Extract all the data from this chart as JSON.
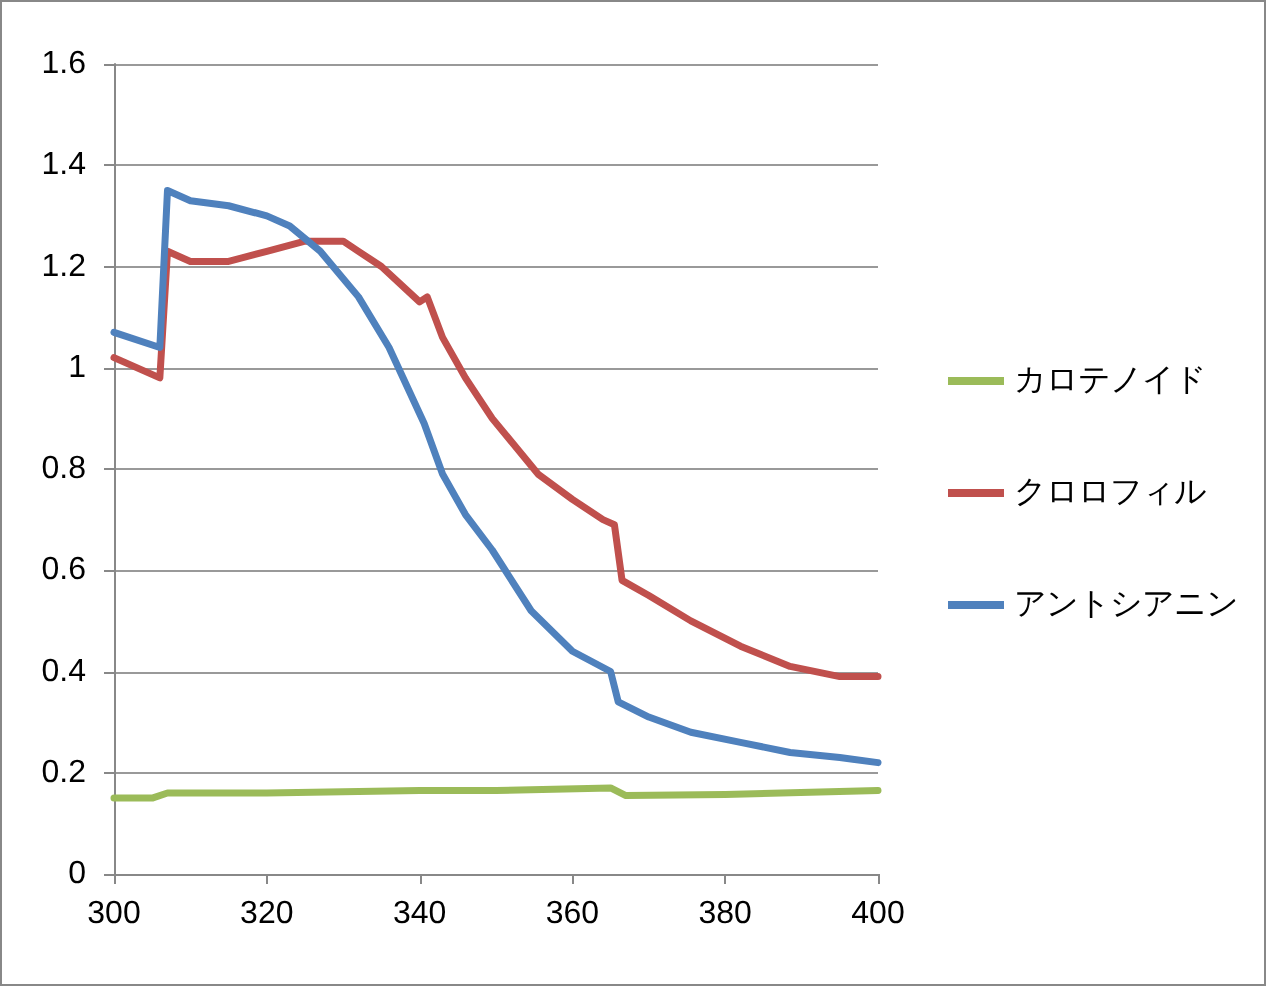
{
  "chart_data": {
    "type": "line",
    "xlim": [
      300,
      400
    ],
    "xticks": [
      300,
      320,
      340,
      360,
      380,
      400
    ],
    "ylim": [
      0,
      1.6
    ],
    "yticks": [
      0,
      0.2,
      0.4,
      0.6,
      0.8,
      1,
      1.2,
      1.4,
      1.6
    ],
    "grid": "y",
    "legend": "right",
    "marker": "none",
    "line_style": "solid",
    "series": [
      {
        "name": "カロテノイド",
        "color": "#9bbb59",
        "x": [
          300,
          305,
          307,
          320,
          340,
          350,
          365,
          367,
          380,
          400
        ],
        "values": [
          0.15,
          0.15,
          0.16,
          0.16,
          0.165,
          0.165,
          0.17,
          0.155,
          0.157,
          0.165
        ]
      },
      {
        "name": "クロロフィル",
        "color": "#c0504d",
        "x": [
          300,
          306,
          307,
          310,
          315,
          320,
          325,
          330,
          332,
          335,
          340,
          341,
          343,
          346,
          349.5,
          355.5,
          360,
          364,
          365.5,
          366.5,
          370,
          375.5,
          382,
          388.5,
          395,
          400
        ],
        "values": [
          1.02,
          0.98,
          1.23,
          1.21,
          1.21,
          1.23,
          1.25,
          1.25,
          1.23,
          1.2,
          1.13,
          1.14,
          1.06,
          0.98,
          0.9,
          0.79,
          0.74,
          0.7,
          0.69,
          0.58,
          0.55,
          0.5,
          0.45,
          0.41,
          0.39,
          0.39
        ]
      },
      {
        "name": "アントシアニン",
        "color": "#4f81bd",
        "x": [
          300,
          306,
          307,
          310,
          315,
          320,
          323,
          327,
          332,
          336,
          340.6,
          343,
          346,
          349.5,
          354.6,
          360,
          365,
          366,
          370,
          375.5,
          382,
          388.5,
          395,
          400
        ],
        "values": [
          1.07,
          1.04,
          1.35,
          1.33,
          1.32,
          1.3,
          1.28,
          1.23,
          1.14,
          1.04,
          0.89,
          0.79,
          0.71,
          0.64,
          0.52,
          0.44,
          0.4,
          0.34,
          0.31,
          0.28,
          0.26,
          0.24,
          0.23,
          0.22
        ]
      }
    ]
  }
}
